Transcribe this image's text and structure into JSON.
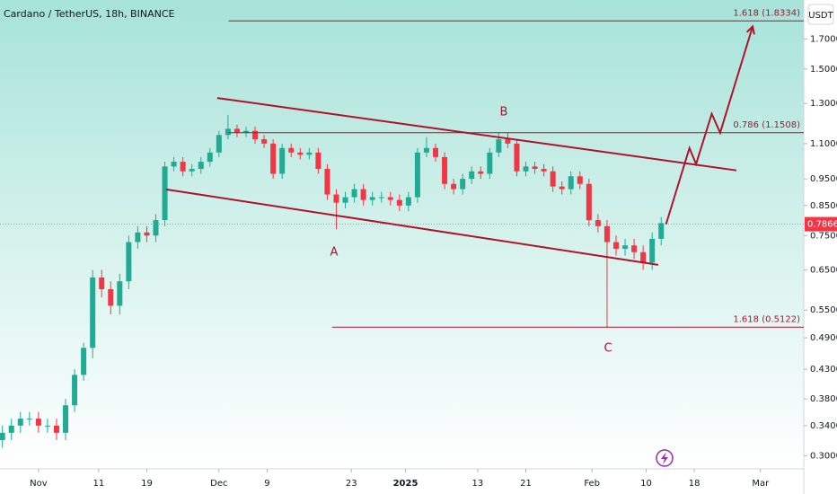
{
  "chart_data": {
    "type": "candlestick",
    "title": "Cardano / TetherUS, 18h, BINANCE",
    "currency": "USDT",
    "up_color": "#22ab94",
    "down_color": "#f23645",
    "drawing_color": "#b0122d",
    "log_scale": true,
    "grid": false,
    "x": [
      -6,
      -4.5,
      -3,
      -1.5,
      0,
      1.5,
      3,
      4.5,
      6,
      7.5,
      9,
      10.5,
      12,
      13.5,
      15,
      16.5,
      18,
      19.5,
      21,
      22.5,
      24,
      25.5,
      27,
      28.5,
      30,
      31.5,
      33,
      34.5,
      36,
      37.5,
      39,
      40.5,
      42,
      43.5,
      45,
      46.5,
      48,
      49.5,
      51,
      52.5,
      54,
      55.5,
      57,
      58.5,
      60,
      61.5,
      63,
      64.5,
      66,
      67.5,
      69,
      70.5,
      72,
      73.5,
      75,
      76.5,
      78,
      79.5,
      81,
      82.5,
      84,
      85.5,
      87,
      88.5,
      90,
      91.5,
      93,
      94.5,
      96,
      97.5,
      99,
      100.5,
      102,
      103.5
    ],
    "open": [
      0.32,
      0.33,
      0.34,
      0.35,
      0.35,
      0.34,
      0.34,
      0.33,
      0.37,
      0.42,
      0.47,
      0.63,
      0.6,
      0.56,
      0.62,
      0.73,
      0.76,
      0.75,
      0.8,
      1.0,
      1.02,
      0.98,
      0.99,
      1.02,
      1.06,
      1.14,
      1.17,
      1.15,
      1.16,
      1.12,
      1.1,
      0.97,
      1.08,
      1.06,
      1.05,
      1.06,
      0.99,
      0.89,
      0.86,
      0.88,
      0.91,
      0.87,
      0.88,
      0.88,
      0.87,
      0.85,
      0.88,
      1.06,
      1.08,
      1.04,
      0.93,
      0.91,
      0.95,
      0.98,
      0.97,
      1.06,
      1.12,
      1.1,
      0.98,
      1.0,
      0.99,
      0.98,
      0.92,
      0.91,
      0.96,
      0.93,
      0.8,
      0.78,
      0.73,
      0.71,
      0.72,
      0.7,
      0.67,
      0.74
    ],
    "high": [
      0.34,
      0.35,
      0.36,
      0.36,
      0.36,
      0.35,
      0.35,
      0.38,
      0.43,
      0.48,
      0.65,
      0.65,
      0.62,
      0.64,
      0.75,
      0.78,
      0.78,
      0.82,
      1.02,
      1.04,
      1.04,
      1.01,
      1.04,
      1.08,
      1.16,
      1.24,
      1.19,
      1.18,
      1.18,
      1.14,
      1.12,
      1.1,
      1.1,
      1.08,
      1.08,
      1.08,
      1.01,
      0.91,
      0.9,
      0.93,
      0.93,
      0.9,
      0.9,
      0.9,
      0.89,
      0.9,
      1.08,
      1.13,
      1.1,
      1.06,
      0.95,
      0.97,
      1.0,
      1.0,
      1.08,
      1.15,
      1.15,
      1.12,
      1.02,
      1.02,
      1.01,
      1.0,
      0.94,
      0.98,
      0.98,
      0.95,
      0.82,
      0.8,
      0.75,
      0.74,
      0.74,
      0.72,
      0.76,
      0.81
    ],
    "low": [
      0.31,
      0.32,
      0.33,
      0.34,
      0.33,
      0.33,
      0.32,
      0.32,
      0.36,
      0.41,
      0.45,
      0.58,
      0.54,
      0.54,
      0.6,
      0.71,
      0.73,
      0.73,
      0.78,
      0.98,
      0.96,
      0.96,
      0.97,
      1.0,
      1.04,
      1.12,
      1.13,
      1.13,
      1.1,
      1.08,
      0.95,
      0.95,
      1.04,
      1.03,
      1.03,
      0.97,
      0.87,
      0.77,
      0.84,
      0.86,
      0.85,
      0.85,
      0.86,
      0.85,
      0.83,
      0.83,
      0.86,
      1.04,
      1.02,
      0.91,
      0.89,
      0.89,
      0.93,
      0.95,
      0.95,
      1.04,
      1.08,
      0.96,
      0.96,
      0.97,
      0.96,
      0.9,
      0.89,
      0.89,
      0.91,
      0.78,
      0.76,
      0.512,
      0.69,
      0.69,
      0.68,
      0.65,
      0.65,
      0.72
    ],
    "close": [
      0.33,
      0.34,
      0.35,
      0.35,
      0.34,
      0.34,
      0.33,
      0.37,
      0.42,
      0.47,
      0.63,
      0.6,
      0.56,
      0.62,
      0.73,
      0.76,
      0.75,
      0.8,
      1.0,
      1.02,
      0.98,
      0.99,
      1.02,
      1.06,
      1.14,
      1.17,
      1.15,
      1.16,
      1.12,
      1.1,
      0.97,
      1.08,
      1.06,
      1.05,
      1.06,
      0.99,
      0.89,
      0.86,
      0.88,
      0.91,
      0.87,
      0.88,
      0.88,
      0.87,
      0.85,
      0.88,
      1.06,
      1.08,
      1.04,
      0.93,
      0.91,
      0.95,
      0.98,
      0.97,
      1.06,
      1.12,
      1.1,
      0.98,
      1.0,
      0.99,
      0.98,
      0.92,
      0.91,
      0.96,
      0.93,
      0.8,
      0.78,
      0.73,
      0.71,
      0.72,
      0.7,
      0.67,
      0.74,
      0.79
    ],
    "last_price": 0.7866,
    "xlim": [
      -6.4,
      127.2
    ],
    "ylim": [
      0.284,
      2.0
    ],
    "xticks": [
      {
        "value": 0,
        "label": "Nov"
      },
      {
        "value": 10,
        "label": "11"
      },
      {
        "value": 18,
        "label": "19"
      },
      {
        "value": 30,
        "label": "Dec"
      },
      {
        "value": 38,
        "label": "9"
      },
      {
        "value": 52,
        "label": "23"
      },
      {
        "value": 61,
        "label": "2025"
      },
      {
        "value": 73,
        "label": "13"
      },
      {
        "value": 81,
        "label": "21"
      },
      {
        "value": 92,
        "label": "Feb"
      },
      {
        "value": 101,
        "label": "10"
      },
      {
        "value": 109,
        "label": "18"
      },
      {
        "value": 120,
        "label": "Mar"
      }
    ],
    "yticks": [
      {
        "value": 0.3,
        "label": "0.3000"
      },
      {
        "value": 0.34,
        "label": "0.3400"
      },
      {
        "value": 0.38,
        "label": "0.3800"
      },
      {
        "value": 0.43,
        "label": "0.4300"
      },
      {
        "value": 0.49,
        "label": "0.4900"
      },
      {
        "value": 0.55,
        "label": "0.5500"
      },
      {
        "value": 0.65,
        "label": "0.6500"
      },
      {
        "value": 0.75,
        "label": "0.7500"
      },
      {
        "value": 0.85,
        "label": "0.8500"
      },
      {
        "value": 0.95,
        "label": "0.9500"
      },
      {
        "value": 1.1,
        "label": "1.1000"
      },
      {
        "value": 1.3,
        "label": "1.3000"
      },
      {
        "value": 1.5,
        "label": "1.5000"
      },
      {
        "value": 1.7,
        "label": "1.7000"
      }
    ],
    "fib_levels": [
      {
        "label": "1.618 (1.8334)",
        "value": 1.8334,
        "x": [
          31.6,
          127.2
        ]
      },
      {
        "label": "0.786 (1.1508)",
        "value": 1.1508,
        "x": [
          31.6,
          127.2
        ]
      },
      {
        "label": "1.618 (0.5122)",
        "value": 0.5122,
        "x": [
          48.8,
          127.2
        ]
      }
    ],
    "channel": [
      {
        "x": [
          29.7,
          116.0
        ],
        "y": [
          1.33,
          0.984
        ]
      },
      {
        "x": [
          21.2,
          103.0
        ],
        "y": [
          0.909,
          0.664
        ]
      }
    ],
    "projection": {
      "x": [
        104.3,
        108.2,
        109.3,
        111.9,
        113.3,
        118.7
      ],
      "y": [
        0.786,
        1.08,
        1.01,
        1.245,
        1.151,
        1.791
      ]
    },
    "wave_labels": [
      "A",
      "B",
      "C"
    ]
  }
}
